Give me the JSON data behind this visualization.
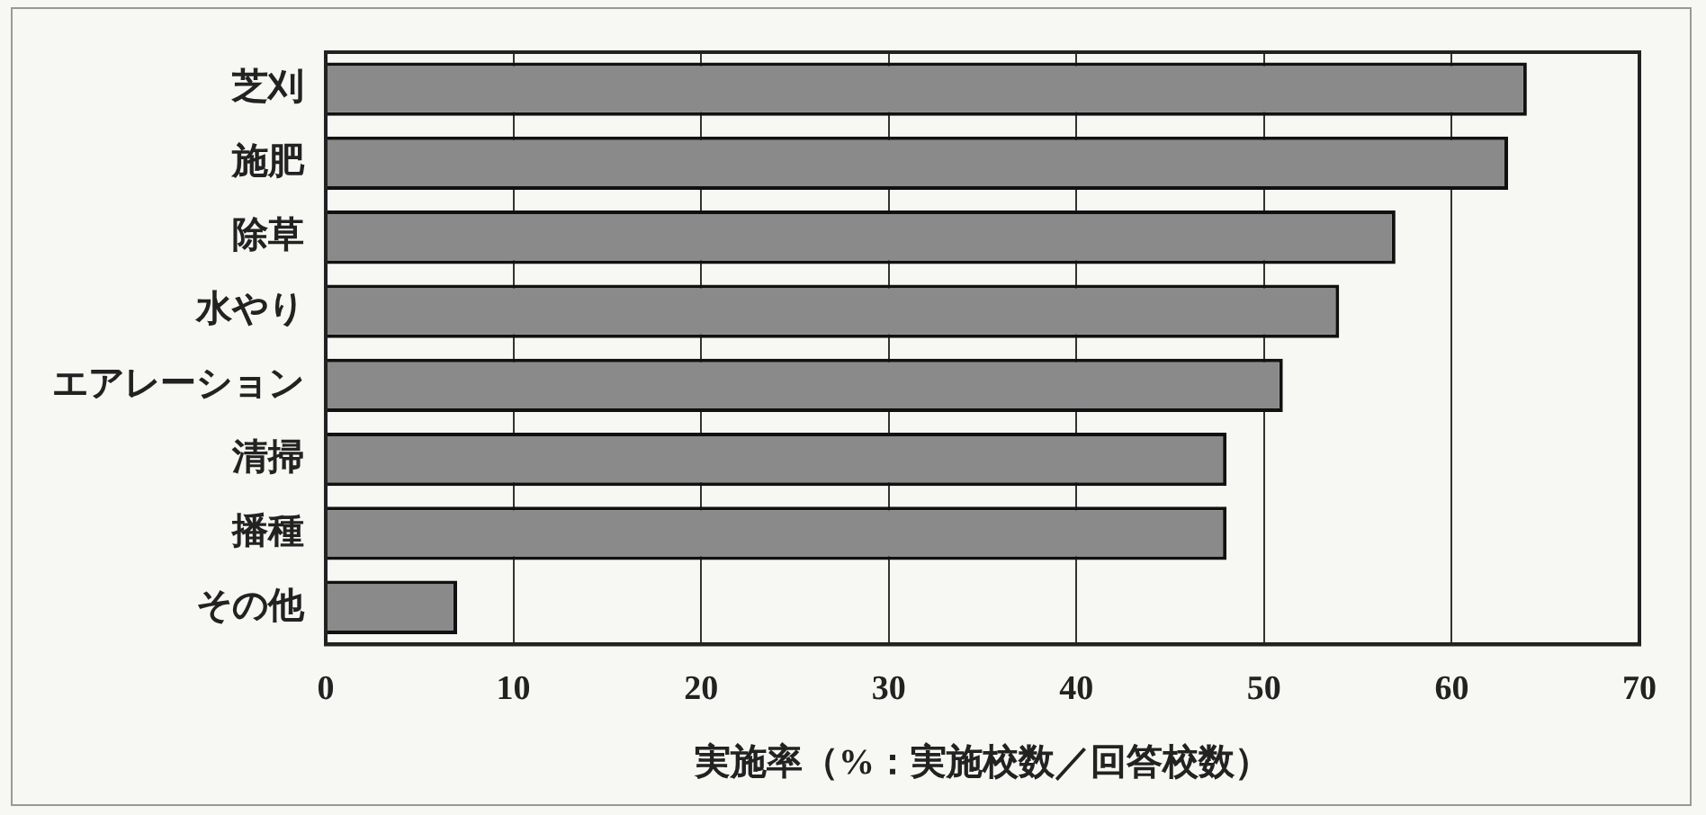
{
  "chart_data": {
    "type": "bar",
    "orientation": "horizontal",
    "xlabel": "実施率（%：実施校数／回答校数）",
    "categories": [
      "芝刈",
      "施肥",
      "除草",
      "水やり",
      "エアレーション",
      "清掃",
      "播種",
      "その他"
    ],
    "values": [
      64,
      63,
      57,
      54,
      51,
      48,
      48,
      7
    ],
    "color": "#8a8a8a",
    "xlim": [
      0,
      70
    ],
    "xticks": [
      0,
      10,
      20,
      30,
      40,
      50,
      60,
      70
    ],
    "grid": "x",
    "legend": false
  }
}
